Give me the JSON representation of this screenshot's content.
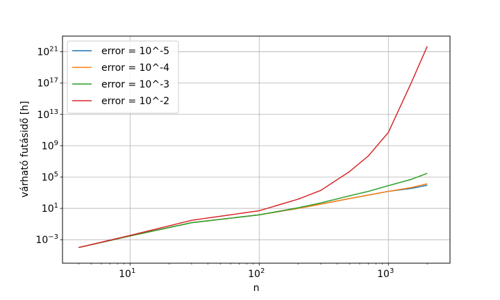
{
  "chart_data": {
    "type": "line",
    "xscale": "log",
    "yscale": "log",
    "xlabel": "n",
    "ylabel": "várható futásidő [h]",
    "xlim": [
      3.0,
      3000
    ],
    "ylim": [
      1e-06,
      1e+23
    ],
    "grid": true,
    "legend_position": "top-left",
    "x_ticks": [
      {
        "value": 10,
        "base": "10",
        "exp": "1"
      },
      {
        "value": 100,
        "base": "10",
        "exp": "2"
      },
      {
        "value": 1000,
        "base": "10",
        "exp": "3"
      }
    ],
    "y_ticks": [
      {
        "value": 0.001,
        "base": "10",
        "exp": "−3"
      },
      {
        "value": 10.0,
        "base": "10",
        "exp": "1"
      },
      {
        "value": 100000.0,
        "base": "10",
        "exp": "5"
      },
      {
        "value": 1000000000.0,
        "base": "10",
        "exp": "9"
      },
      {
        "value": 10000000000000.0,
        "base": "10",
        "exp": "13"
      },
      {
        "value": 1e+17,
        "base": "10",
        "exp": "17"
      },
      {
        "value": 1e+21,
        "base": "10",
        "exp": "21"
      }
    ],
    "x": [
      4,
      10,
      30,
      100,
      200,
      300,
      500,
      700,
      1000,
      1500,
      2000
    ],
    "series": [
      {
        "name": "error = 10^-5",
        "color": "#1f77b4",
        "values": [
          0.0001,
          0.003,
          0.15,
          1.5,
          10,
          35,
          180,
          500,
          1500,
          3500,
          9000
        ]
      },
      {
        "name": "error = 10^-4",
        "color": "#ff7f0e",
        "values": [
          0.0001,
          0.003,
          0.15,
          1.5,
          10,
          35,
          180,
          500,
          1500,
          4500,
          14000
        ]
      },
      {
        "name": "error = 10^-3",
        "color": "#2ca02c",
        "values": [
          0.0001,
          0.003,
          0.15,
          1.5,
          12,
          50,
          400,
          1500,
          8000,
          50000,
          300000
        ]
      },
      {
        "name": "error = 10^-2",
        "color": "#d62728",
        "values": [
          0.0001,
          0.0035,
          0.3,
          5,
          150,
          2000,
          500000,
          50000000,
          50000000000,
          1e+17,
          5e+21
        ]
      }
    ]
  }
}
